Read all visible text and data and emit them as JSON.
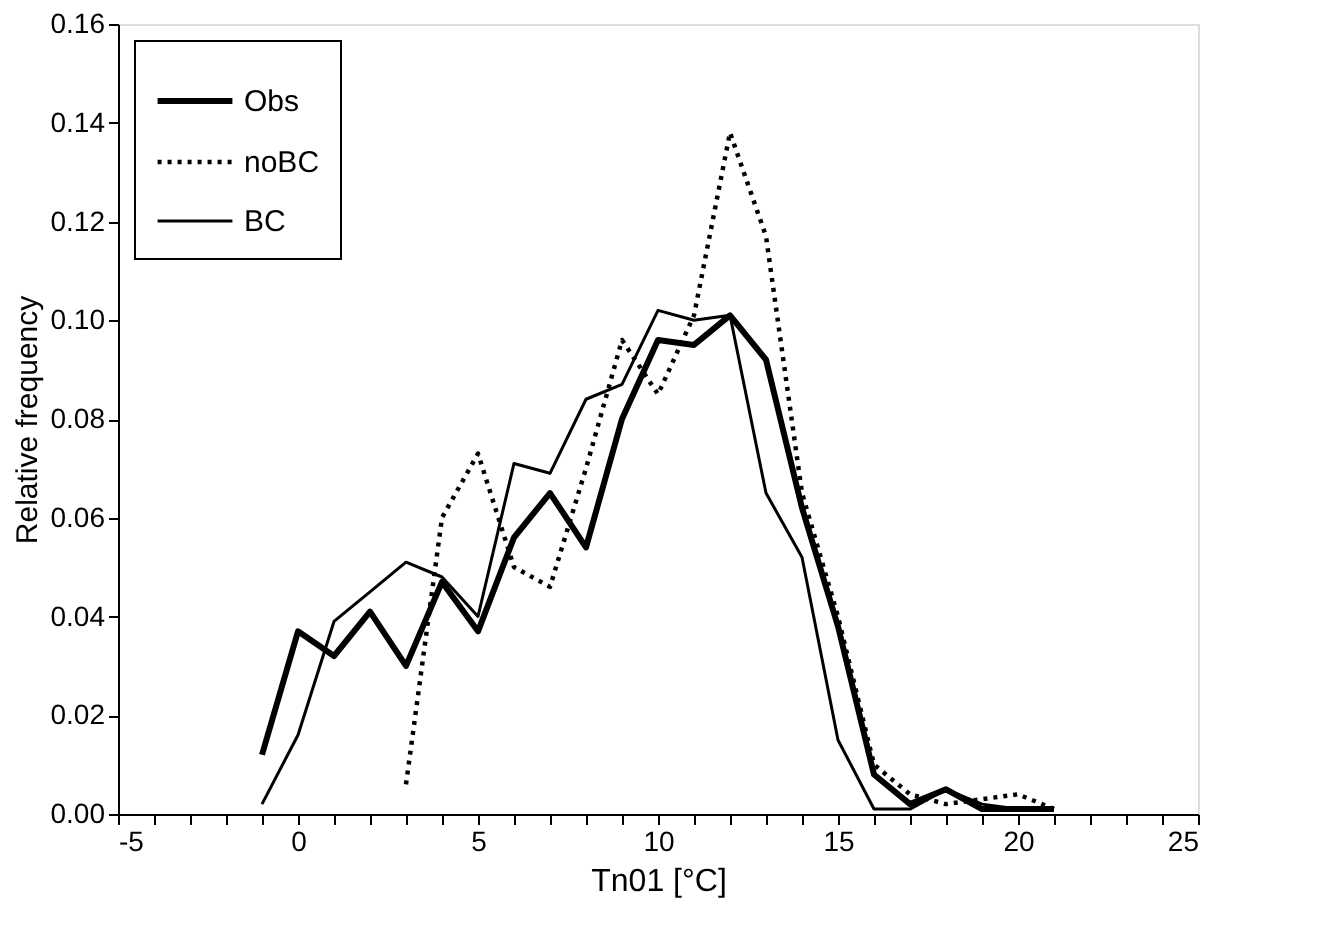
{
  "chart_data": {
    "type": "line",
    "xlabel": "Tn01 [°C]",
    "ylabel": "Relative frequency",
    "x": [
      -1,
      0,
      1,
      2,
      3,
      4,
      5,
      6,
      7,
      8,
      9,
      10,
      11,
      12,
      13,
      14,
      15,
      16,
      17,
      18,
      19,
      20,
      21
    ],
    "series": [
      {
        "name": "Obs",
        "color": "#000000",
        "line_style": "solid",
        "values": [
          0.012,
          0.037,
          0.032,
          0.041,
          0.03,
          0.047,
          0.037,
          0.056,
          0.065,
          0.054,
          0.08,
          0.096,
          0.095,
          0.101,
          0.092,
          0.062,
          0.038,
          0.008,
          0.002,
          0.005,
          0.001,
          0.001,
          0.001
        ]
      },
      {
        "name": "noBC",
        "color": "#000000",
        "line_style": "dotted",
        "values": [
          null,
          null,
          null,
          null,
          0.006,
          0.06,
          0.073,
          0.05,
          0.046,
          0.07,
          0.096,
          0.085,
          0.101,
          0.138,
          0.117,
          0.065,
          0.04,
          0.01,
          0.004,
          0.002,
          0.003,
          0.004,
          0.001
        ]
      },
      {
        "name": "BC",
        "color": "#000000",
        "line_style": "solid",
        "values": [
          0.002,
          0.016,
          0.039,
          0.045,
          0.051,
          0.048,
          0.04,
          0.071,
          0.069,
          0.084,
          0.087,
          0.102,
          0.1,
          0.101,
          0.065,
          0.052,
          0.015,
          0.001,
          0.001,
          0.005,
          0.002,
          0.001,
          0.001
        ]
      }
    ],
    "xlim": [
      -5,
      25
    ],
    "xticks": [
      -5,
      {
        "value": -4,
        "label": null
      },
      {
        "value": -3,
        "label": null
      },
      {
        "value": -2,
        "label": null
      },
      {
        "value": -1,
        "label": null
      },
      0,
      {
        "value": 1,
        "label": null
      },
      {
        "value": 2,
        "label": null
      },
      {
        "value": 3,
        "label": null
      },
      {
        "value": 4,
        "label": null
      },
      5,
      {
        "value": 6,
        "label": null
      },
      {
        "value": 7,
        "label": null
      },
      {
        "value": 8,
        "label": null
      },
      {
        "value": 9,
        "label": null
      },
      10,
      {
        "value": 11,
        "label": null
      },
      {
        "value": 12,
        "label": null
      },
      {
        "value": 13,
        "label": null
      },
      {
        "value": 14,
        "label": null
      },
      15,
      {
        "value": 16,
        "label": null
      },
      {
        "value": 17,
        "label": null
      },
      {
        "value": 18,
        "label": null
      },
      {
        "value": 19,
        "label": null
      },
      20,
      {
        "value": 21,
        "label": null
      },
      {
        "value": 22,
        "label": null
      },
      {
        "value": 23,
        "label": null
      },
      {
        "value": 24,
        "label": null
      },
      25
    ],
    "ylim": [
      0,
      0.16
    ],
    "yticks": [
      {
        "value": 0,
        "label": "0.00"
      },
      {
        "value": 0.02,
        "label": "0.02"
      },
      {
        "value": 0.04,
        "label": "0.04"
      },
      {
        "value": 0.06,
        "label": "0.06"
      },
      {
        "value": 0.08,
        "label": "0.08"
      },
      {
        "value": 0.1,
        "label": "0.10"
      },
      {
        "value": 0.12,
        "label": "0.12"
      },
      {
        "value": 0.14,
        "label": "0.14"
      },
      {
        "value": 0.16,
        "label": "0.16"
      }
    ],
    "grid": false,
    "legend": "top left",
    "marker": "none"
  }
}
